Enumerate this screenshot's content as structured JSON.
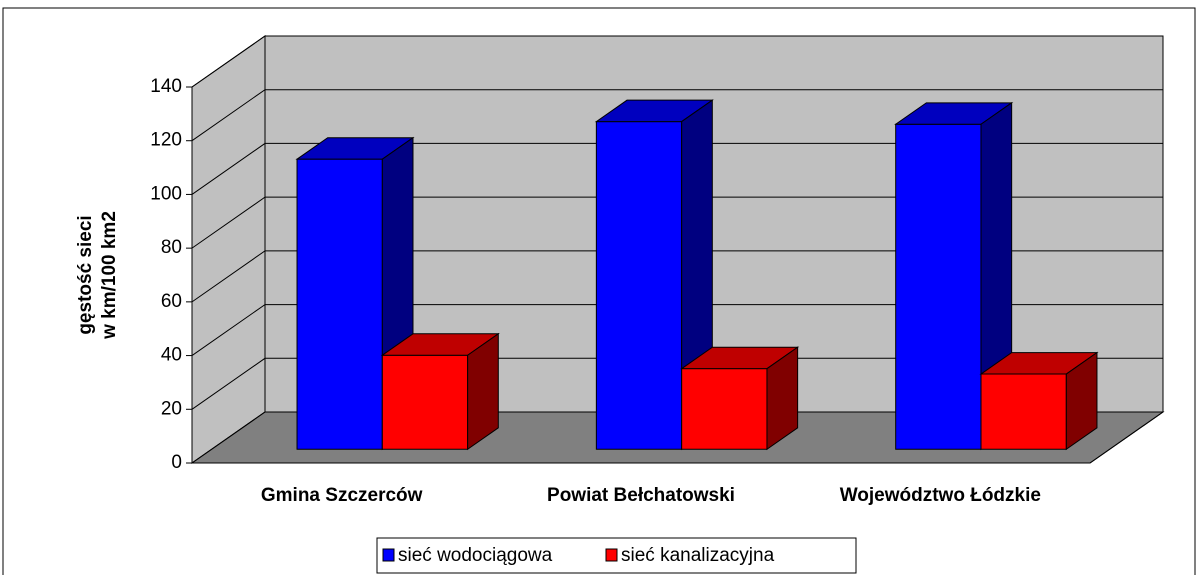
{
  "chart_data": {
    "type": "bar3d",
    "ylabel": [
      "gęstość sieci",
      "w km/100 km2"
    ],
    "categories": [
      "Gmina Szczerców",
      "Powiat Bełchatowski",
      "Województwo Łódzkie"
    ],
    "series": [
      {
        "name": "sieć wodociągowa",
        "color": "#0000ff",
        "values": [
          108,
          122,
          121
        ]
      },
      {
        "name": "sieć kanalizacyjna",
        "color": "#ff0000",
        "values": [
          35,
          30,
          28
        ]
      }
    ],
    "ylim": [
      0,
      140
    ],
    "yticks": [
      0,
      20,
      40,
      60,
      80,
      100,
      120,
      140
    ],
    "grid": true,
    "legend": "bottom"
  }
}
